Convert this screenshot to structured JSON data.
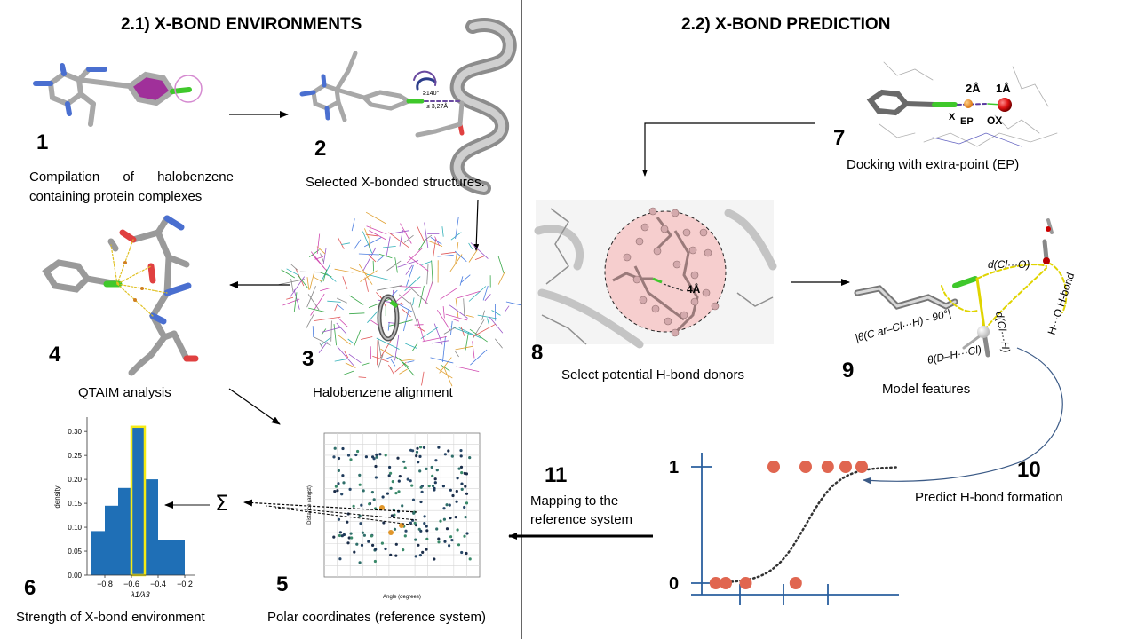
{
  "left_panel": {
    "title": "2.1) X-BOND ENVIRONMENTS",
    "steps": [
      {
        "number": "1",
        "caption_lines": [
          "Compilation  of  halobenzene",
          "containing protein complexes"
        ]
      },
      {
        "number": "2",
        "caption": "Selected X-bonded structures."
      },
      {
        "number": "3",
        "caption": "Halobenzene alignment"
      },
      {
        "number": "4",
        "caption": "QTAIM analysis"
      },
      {
        "number": "5",
        "caption": "Polar coordinates (reference system)"
      },
      {
        "number": "6",
        "caption": "Strength of  X-bond environment"
      }
    ],
    "step2_labels": {
      "angle": "≥140°",
      "distance": "≤ 3,27Å"
    },
    "sum_symbol": "Σ"
  },
  "right_panel": {
    "title": "2.2) X-BOND PREDICTION",
    "steps": [
      {
        "number": "7",
        "caption": "Docking with extra-point (EP)"
      },
      {
        "number": "8",
        "caption": "Select potential H-bond donors"
      },
      {
        "number": "9",
        "caption": "Model features"
      },
      {
        "number": "10",
        "caption": "Predict H-bond formation"
      },
      {
        "number": "11",
        "caption_lines": [
          "Mapping  to the",
          "reference system"
        ]
      }
    ],
    "step7_labels": {
      "d1": "2Å",
      "d2": "1Å",
      "x": "X",
      "ep": "EP",
      "ox": "OX"
    },
    "step8_label": "4Å",
    "step9_labels": [
      "d(Cl···O)",
      "H···O  H-bond",
      "d(Cl···H)",
      "|θ(C ar–Cl···H) - 90°|",
      "θ(D–H···Cl)"
    ]
  },
  "colors": {
    "blue_bar": "#1f6fb6",
    "highlight": "#f5ea14",
    "logistic_dot": "#e06650",
    "axis_blue": "#2a5f9e",
    "halogen_green": "#3fc82b",
    "sphere_pink": "#f6c7c7"
  },
  "histogram": {
    "chart_data": {
      "type": "bar",
      "xlabel": "λ1/λ3",
      "ylabel": "density",
      "x_ticks": [
        "−0.8",
        "−0.6",
        "−0.4",
        "−0.2"
      ],
      "y_ticks": [
        "0.00",
        "0.05",
        "0.10",
        "0.15",
        "0.20",
        "0.25",
        "0.30"
      ],
      "ylim": [
        0,
        0.33
      ],
      "xlim": [
        -0.92,
        -0.12
      ],
      "bin_edges": [
        -0.9,
        -0.8,
        -0.7,
        -0.6,
        -0.5,
        -0.4,
        -0.3,
        -0.2
      ],
      "values": [
        0.092,
        0.145,
        0.182,
        0.31,
        0.2,
        0.073,
        0.073
      ],
      "highlighted_bin": 3
    }
  },
  "logistic": {
    "chart_data": {
      "type": "scatter",
      "y_ticks": [
        "0",
        "1"
      ],
      "points_y1": [
        1.8,
        2.6,
        3.15,
        3.6,
        4.0
      ],
      "points_y0": [
        0.35,
        0.6,
        1.1,
        2.35
      ],
      "curve": "sigmoid"
    }
  },
  "polar_plot": {
    "chart_data": {
      "type": "scatter",
      "xlabel": "Angle (degrees)",
      "ylabel": "Distance (angst)"
    }
  }
}
